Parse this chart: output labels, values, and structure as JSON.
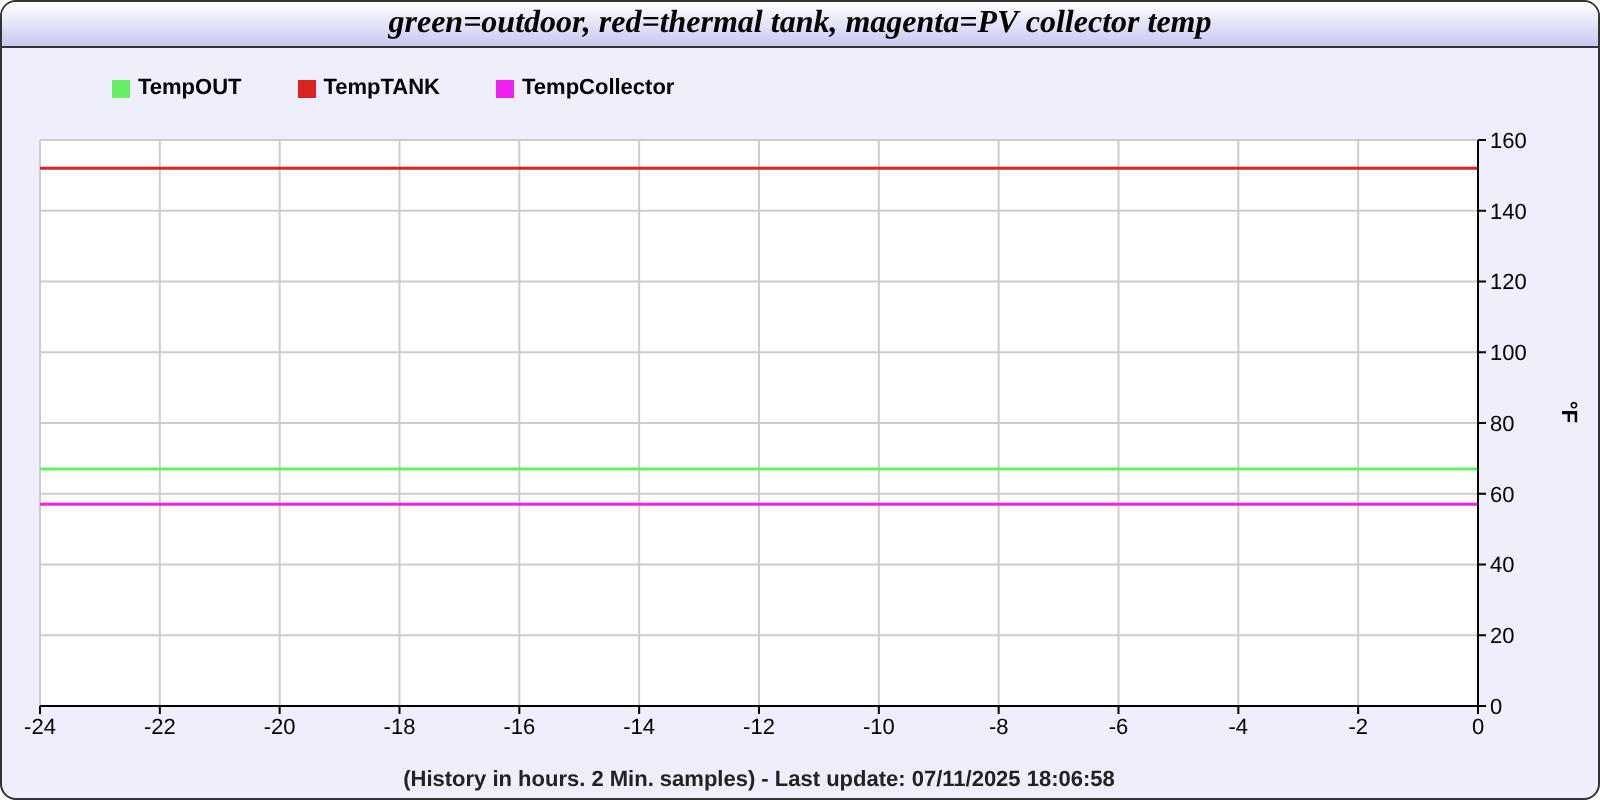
{
  "chart_data": {
    "type": "line",
    "title": "green=outdoor, red=thermal tank, magenta=PV collector temp",
    "xlabel": "(History in hours. 2 Min. samples) - Last update: 07/11/2025 18:06:58",
    "ylabel": "°F",
    "x": [
      -24,
      0
    ],
    "series": [
      {
        "name": "TempOUT",
        "color": "#66ee66",
        "values": [
          67,
          67
        ]
      },
      {
        "name": "TempTANK",
        "color": "#dd2222",
        "values": [
          152,
          152
        ]
      },
      {
        "name": "TempCollector",
        "color": "#ee22ee",
        "values": [
          57,
          57
        ]
      }
    ],
    "xlim": [
      -24,
      0
    ],
    "xticks": [
      -24,
      -22,
      -20,
      -18,
      -16,
      -14,
      -12,
      -10,
      -8,
      -6,
      -4,
      -2,
      0
    ],
    "ylim": [
      0,
      160
    ],
    "yticks": [
      0,
      20,
      40,
      60,
      80,
      100,
      120,
      140,
      160
    ],
    "grid": true,
    "legend": "top left",
    "marker": "none",
    "line_style": "solid"
  }
}
